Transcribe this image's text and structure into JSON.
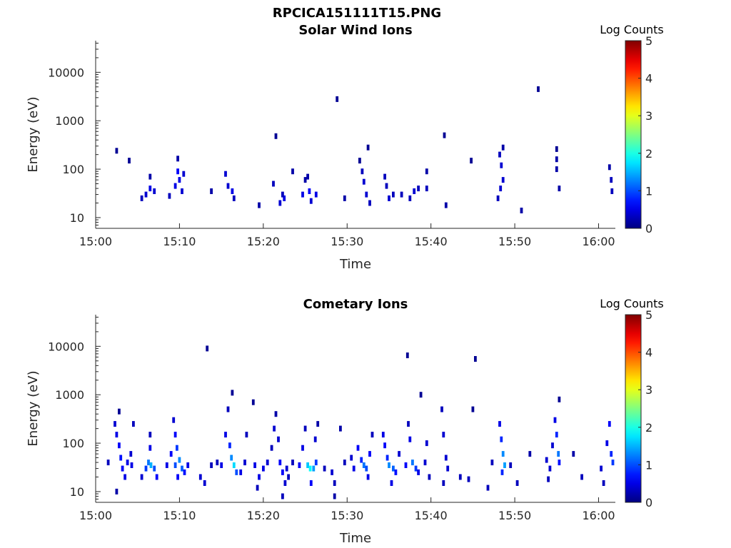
{
  "figure_title": "RPCICA151111T15.PNG",
  "chart_data": [
    {
      "type": "heatmap",
      "title": "Solar Wind Ions",
      "xlabel": "Time",
      "ylabel": "Energy (eV)",
      "y_scale": "log",
      "ylim": [
        6,
        45000
      ],
      "xlim": [
        "15:00",
        "16:02"
      ],
      "x_ticks": [
        "15:00",
        "15:10",
        "15:20",
        "15:30",
        "15:40",
        "15:50",
        "16:00"
      ],
      "y_ticks": [
        "10",
        "100",
        "1000",
        "10000"
      ],
      "colorbar": {
        "label": "Log Counts",
        "range": [
          0,
          5
        ],
        "ticks": [
          "0",
          "1",
          "2",
          "3",
          "4",
          "5"
        ],
        "colormap": "jet"
      },
      "points": [
        [
          "15:02.5",
          240,
          0.1
        ],
        [
          "15:04.0",
          150,
          0.1
        ],
        [
          "15:05.5",
          25,
          0.3
        ],
        [
          "15:06.0",
          30,
          0.4
        ],
        [
          "15:06.5",
          40,
          0.5
        ],
        [
          "15:07.0",
          35,
          0.4
        ],
        [
          "15:06.5",
          70,
          0.2
        ],
        [
          "15:08.8",
          28,
          0.3
        ],
        [
          "15:09.5",
          45,
          0.5
        ],
        [
          "15:09.8",
          90,
          0.6
        ],
        [
          "15:10.0",
          60,
          0.5
        ],
        [
          "15:10.3",
          35,
          0.4
        ],
        [
          "15:10.5",
          80,
          0.4
        ],
        [
          "15:09.8",
          165,
          0.2
        ],
        [
          "15:13.8",
          35,
          0.2
        ],
        [
          "15:15.5",
          80,
          0.4
        ],
        [
          "15:15.8",
          45,
          0.4
        ],
        [
          "15:16.3",
          35,
          0.5
        ],
        [
          "15:16.5",
          25,
          0.3
        ],
        [
          "15:19.5",
          18,
          0.2
        ],
        [
          "15:21.2",
          50,
          0.3
        ],
        [
          "15:21.5",
          480,
          0.1
        ],
        [
          "15:22.0",
          20,
          0.4
        ],
        [
          "15:22.5",
          25,
          0.5
        ],
        [
          "15:22.3",
          30,
          0.3
        ],
        [
          "15:23.5",
          90,
          0.2
        ],
        [
          "15:24.7",
          30,
          0.5
        ],
        [
          "15:25.5",
          35,
          0.6
        ],
        [
          "15:26.3",
          30,
          0.5
        ],
        [
          "15:25.7",
          22,
          0.4
        ],
        [
          "15:25.0",
          60,
          0.2
        ],
        [
          "15:25.3",
          70,
          0.2
        ],
        [
          "15:28.8",
          2800,
          0.1
        ],
        [
          "15:29.7",
          25,
          0.2
        ],
        [
          "15:31.8",
          90,
          0.3
        ],
        [
          "15:32.0",
          55,
          0.4
        ],
        [
          "15:32.3",
          30,
          0.4
        ],
        [
          "15:32.7",
          20,
          0.3
        ],
        [
          "15:31.5",
          150,
          0.1
        ],
        [
          "15:32.5",
          280,
          0.1
        ],
        [
          "15:34.5",
          70,
          0.3
        ],
        [
          "15:34.7",
          45,
          0.3
        ],
        [
          "15:35.0",
          25,
          0.4
        ],
        [
          "15:35.5",
          30,
          0.3
        ],
        [
          "15:36.5",
          30,
          0.3
        ],
        [
          "15:37.5",
          25,
          0.3
        ],
        [
          "15:38.0",
          35,
          0.4
        ],
        [
          "15:38.5",
          40,
          0.3
        ],
        [
          "15:39.5",
          40,
          0.3
        ],
        [
          "15:39.5",
          90,
          0.2
        ],
        [
          "15:41.6",
          500,
          0.1
        ],
        [
          "15:41.8",
          18,
          0.2
        ],
        [
          "15:44.8",
          150,
          0.1
        ],
        [
          "15:48.2",
          200,
          0.3
        ],
        [
          "15:48.4",
          120,
          0.4
        ],
        [
          "15:48.6",
          60,
          0.4
        ],
        [
          "15:48.3",
          40,
          0.4
        ],
        [
          "15:48.0",
          25,
          0.3
        ],
        [
          "15:48.6",
          280,
          0.2
        ],
        [
          "15:50.8",
          14,
          0.2
        ],
        [
          "15:52.8",
          4500,
          0.1
        ],
        [
          "15:55.0",
          260,
          0.1
        ],
        [
          "15:55.0",
          160,
          0.2
        ],
        [
          "15:55.0",
          100,
          0.2
        ],
        [
          "15:55.3",
          40,
          0.2
        ],
        [
          "16:01.3",
          110,
          0.2
        ],
        [
          "16:01.5",
          60,
          0.3
        ],
        [
          "16:01.6",
          35,
          0.3
        ]
      ]
    },
    {
      "type": "heatmap",
      "title": "Cometary Ions",
      "xlabel": "Time",
      "ylabel": "Energy (eV)",
      "y_scale": "log",
      "ylim": [
        6,
        45000
      ],
      "xlim": [
        "15:00",
        "16:02"
      ],
      "x_ticks": [
        "15:00",
        "15:10",
        "15:20",
        "15:30",
        "15:40",
        "15:50",
        "16:00"
      ],
      "y_ticks": [
        "10",
        "100",
        "1000",
        "10000"
      ],
      "colorbar": {
        "label": "Log Counts",
        "range": [
          0,
          5
        ],
        "ticks": [
          "0",
          "1",
          "2",
          "3",
          "4",
          "5"
        ],
        "colormap": "jet"
      },
      "points": [
        [
          "15:01.5",
          40,
          0.3
        ],
        [
          "15:02.3",
          250,
          0.4
        ],
        [
          "15:02.5",
          150,
          0.5
        ],
        [
          "15:02.8",
          90,
          0.6
        ],
        [
          "15:03.0",
          50,
          0.7
        ],
        [
          "15:03.2",
          30,
          0.6
        ],
        [
          "15:03.5",
          20,
          0.5
        ],
        [
          "15:03.8",
          40,
          0.5
        ],
        [
          "15:04.2",
          60,
          0.4
        ],
        [
          "15:04.5",
          250,
          0.3
        ],
        [
          "15:02.5",
          10,
          0.2
        ],
        [
          "15:02.8",
          450,
          0.1
        ],
        [
          "15:04.3",
          35,
          0.5
        ],
        [
          "15:05.5",
          20,
          0.4
        ],
        [
          "15:06.0",
          30,
          0.9
        ],
        [
          "15:06.3",
          40,
          1.2
        ],
        [
          "15:06.6",
          35,
          1.5
        ],
        [
          "15:07.0",
          30,
          1.0
        ],
        [
          "15:07.3",
          20,
          0.6
        ],
        [
          "15:06.5",
          80,
          0.5
        ],
        [
          "15:06.5",
          150,
          0.3
        ],
        [
          "15:08.5",
          35,
          0.5
        ],
        [
          "15:09.0",
          60,
          0.6
        ],
        [
          "15:09.3",
          300,
          0.4
        ],
        [
          "15:09.5",
          150,
          0.6
        ],
        [
          "15:09.7",
          80,
          0.9
        ],
        [
          "15:10.0",
          45,
          1.3
        ],
        [
          "15:10.3",
          30,
          1.1
        ],
        [
          "15:10.6",
          25,
          0.7
        ],
        [
          "15:09.5",
          35,
          1.0
        ],
        [
          "15:11.0",
          35,
          0.5
        ],
        [
          "15:09.8",
          20,
          0.6
        ],
        [
          "15:12.5",
          20,
          0.4
        ],
        [
          "15:13.0",
          15,
          0.4
        ],
        [
          "15:13.3",
          9000,
          0.1
        ],
        [
          "15:13.8",
          35,
          0.3
        ],
        [
          "15:14.5",
          40,
          0.3
        ],
        [
          "15:15.0",
          35,
          0.5
        ],
        [
          "15:15.5",
          150,
          0.5
        ],
        [
          "15:15.8",
          500,
          0.3
        ],
        [
          "15:16.0",
          90,
          0.8
        ],
        [
          "15:16.2",
          50,
          1.3
        ],
        [
          "15:16.5",
          35,
          1.7
        ],
        [
          "15:16.8",
          25,
          1.0
        ],
        [
          "15:16.3",
          1100,
          0.1
        ],
        [
          "15:17.3",
          25,
          0.5
        ],
        [
          "15:17.8",
          40,
          0.4
        ],
        [
          "15:18.0",
          150,
          0.3
        ],
        [
          "15:19.0",
          35,
          0.5
        ],
        [
          "15:19.5",
          20,
          0.5
        ],
        [
          "15:19.3",
          12,
          0.3
        ],
        [
          "15:20.0",
          30,
          0.5
        ],
        [
          "15:20.5",
          40,
          0.4
        ],
        [
          "15:21.0",
          80,
          0.3
        ],
        [
          "15:21.3",
          200,
          0.4
        ],
        [
          "15:21.5",
          400,
          0.2
        ],
        [
          "15:21.8",
          120,
          0.4
        ],
        [
          "15:22.0",
          40,
          0.6
        ],
        [
          "15:22.3",
          25,
          0.6
        ],
        [
          "15:22.6",
          15,
          0.4
        ],
        [
          "15:22.3",
          8,
          0.3
        ],
        [
          "15:22.8",
          30,
          0.4
        ],
        [
          "15:23.0",
          20,
          0.3
        ],
        [
          "15:23.5",
          40,
          0.3
        ],
        [
          "15:18.8",
          700,
          0.1
        ],
        [
          "15:24.3",
          35,
          0.6
        ],
        [
          "15:24.7",
          80,
          0.5
        ],
        [
          "15:25.0",
          200,
          0.3
        ],
        [
          "15:25.3",
          35,
          1.6
        ],
        [
          "15:25.6",
          30,
          1.9
        ],
        [
          "15:26.0",
          30,
          1.4
        ],
        [
          "15:26.3",
          40,
          0.9
        ],
        [
          "15:25.7",
          15,
          0.6
        ],
        [
          "15:26.2",
          120,
          0.4
        ],
        [
          "15:26.5",
          250,
          0.2
        ],
        [
          "15:27.3",
          30,
          0.3
        ],
        [
          "15:28.2",
          25,
          0.4
        ],
        [
          "15:28.5",
          15,
          0.3
        ],
        [
          "15:28.5",
          8,
          0.2
        ],
        [
          "15:29.2",
          200,
          0.2
        ],
        [
          "15:29.7",
          40,
          0.3
        ],
        [
          "15:30.5",
          50,
          0.4
        ],
        [
          "15:30.8",
          30,
          0.5
        ],
        [
          "15:31.3",
          80,
          0.6
        ],
        [
          "15:31.7",
          45,
          0.8
        ],
        [
          "15:32.0",
          35,
          1.2
        ],
        [
          "15:32.3",
          30,
          1.0
        ],
        [
          "15:32.7",
          60,
          0.6
        ],
        [
          "15:32.5",
          20,
          0.5
        ],
        [
          "15:33.0",
          150,
          0.3
        ],
        [
          "15:34.3",
          150,
          0.5
        ],
        [
          "15:34.5",
          90,
          0.6
        ],
        [
          "15:34.8",
          50,
          0.8
        ],
        [
          "15:35.0",
          35,
          1.3
        ],
        [
          "15:35.5",
          30,
          1.1
        ],
        [
          "15:35.8",
          25,
          0.7
        ],
        [
          "15:35.3",
          15,
          0.5
        ],
        [
          "15:36.2",
          60,
          0.4
        ],
        [
          "15:37.0",
          35,
          0.6
        ],
        [
          "15:37.3",
          250,
          0.3
        ],
        [
          "15:37.5",
          120,
          0.5
        ],
        [
          "15:37.8",
          40,
          1.2
        ],
        [
          "15:38.2",
          30,
          0.9
        ],
        [
          "15:38.5",
          25,
          0.5
        ],
        [
          "15:39.3",
          40,
          0.4
        ],
        [
          "15:39.5",
          100,
          0.4
        ],
        [
          "15:39.8",
          20,
          0.3
        ],
        [
          "15:37.2",
          6500,
          0.1
        ],
        [
          "15:38.8",
          1000,
          0.1
        ],
        [
          "15:41.3",
          500,
          0.3
        ],
        [
          "15:41.5",
          150,
          0.4
        ],
        [
          "15:41.8",
          50,
          0.4
        ],
        [
          "15:42.0",
          30,
          0.4
        ],
        [
          "15:41.5",
          15,
          0.3
        ],
        [
          "15:43.5",
          20,
          0.3
        ],
        [
          "15:44.5",
          18,
          0.3
        ],
        [
          "15:45.3",
          5500,
          0.1
        ],
        [
          "15:45.0",
          500,
          0.1
        ],
        [
          "15:48.2",
          250,
          0.5
        ],
        [
          "15:48.4",
          120,
          0.8
        ],
        [
          "15:48.6",
          60,
          1.3
        ],
        [
          "15:48.8",
          35,
          1.4
        ],
        [
          "15:48.5",
          25,
          0.8
        ],
        [
          "15:47.3",
          40,
          0.3
        ],
        [
          "15:46.8",
          12,
          0.3
        ],
        [
          "15:49.5",
          35,
          0.3
        ],
        [
          "15:50.3",
          15,
          0.3
        ],
        [
          "15:51.8",
          60,
          0.2
        ],
        [
          "15:53.8",
          45,
          0.4
        ],
        [
          "15:54.2",
          30,
          0.4
        ],
        [
          "15:54.5",
          90,
          0.4
        ],
        [
          "15:54.8",
          300,
          0.5
        ],
        [
          "15:55.0",
          150,
          0.8
        ],
        [
          "15:55.2",
          60,
          1.2
        ],
        [
          "15:55.3",
          40,
          0.7
        ],
        [
          "15:54.0",
          18,
          0.3
        ],
        [
          "15:55.3",
          800,
          0.1
        ],
        [
          "15:57.0",
          60,
          0.2
        ],
        [
          "15:58.0",
          20,
          0.3
        ],
        [
          "16:00.3",
          30,
          0.4
        ],
        [
          "16:00.6",
          15,
          0.3
        ],
        [
          "16:01.0",
          100,
          0.5
        ],
        [
          "16:01.3",
          250,
          0.6
        ],
        [
          "16:01.5",
          60,
          0.8
        ],
        [
          "16:01.7",
          40,
          0.9
        ]
      ]
    }
  ]
}
